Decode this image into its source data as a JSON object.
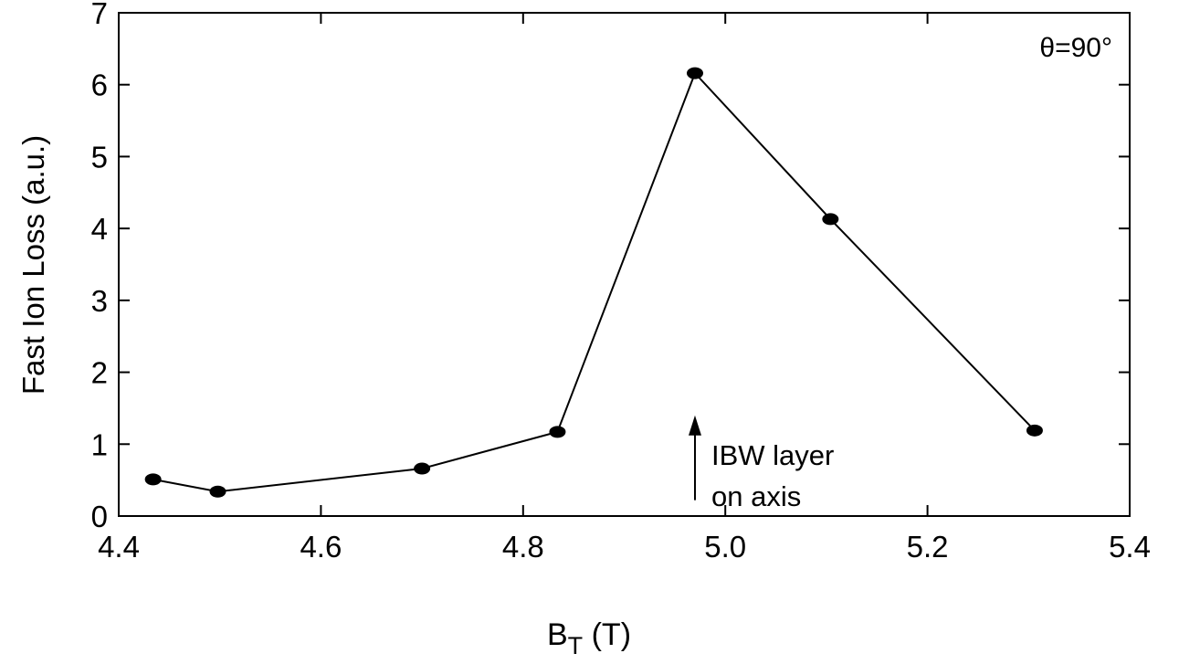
{
  "chart_data": {
    "type": "line",
    "xlabel_main": "B",
    "xlabel_sub": "T",
    "xlabel_unit": " (T)",
    "ylabel": "Fast Ion Loss (a.u.)",
    "xlim": [
      4.4,
      5.4
    ],
    "ylim": [
      0,
      7
    ],
    "x_ticks": [
      "4.4",
      "4.6",
      "4.8",
      "5.0",
      "5.2",
      "5.4"
    ],
    "y_ticks": [
      "0",
      "1",
      "2",
      "3",
      "4",
      "5",
      "6",
      "7"
    ],
    "grid": false,
    "series": [
      {
        "x": [
          4.434,
          4.498,
          4.7,
          4.834,
          4.97,
          5.104,
          5.306
        ],
        "y": [
          0.51,
          0.34,
          0.66,
          1.17,
          6.16,
          4.13,
          1.19
        ],
        "marker": "ellipse",
        "color": "#000000"
      }
    ],
    "annotations": {
      "corner_label": "θ=90°",
      "arrow_label_line1": "IBW layer",
      "arrow_label_line2": "on axis",
      "arrow_x": 4.97,
      "arrow_y_from": 0.22,
      "arrow_y_to": 1.4
    }
  }
}
